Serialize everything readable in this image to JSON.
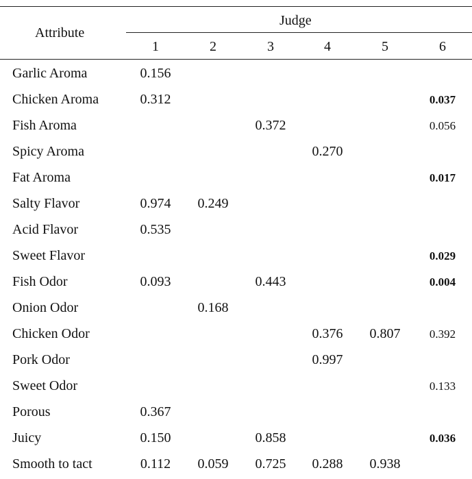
{
  "table": {
    "attribute_header": "Attribute",
    "group_header": "Judge",
    "judges": [
      "1",
      "2",
      "3",
      "4",
      "5",
      "6"
    ],
    "rows": [
      {
        "attribute": "Garlic Aroma",
        "values": [
          "0.156",
          "",
          "",
          "",
          "",
          ""
        ],
        "bold": [
          false,
          false,
          false,
          false,
          false,
          false
        ]
      },
      {
        "attribute": "Chicken Aroma",
        "values": [
          "0.312",
          "",
          "",
          "",
          "",
          "0.037"
        ],
        "bold": [
          false,
          false,
          false,
          false,
          false,
          true
        ]
      },
      {
        "attribute": "Fish Aroma",
        "values": [
          "",
          "",
          "0.372",
          "",
          "",
          "0.056"
        ],
        "bold": [
          false,
          false,
          false,
          false,
          false,
          false
        ]
      },
      {
        "attribute": "Spicy Aroma",
        "values": [
          "",
          "",
          "",
          "0.270",
          "",
          ""
        ],
        "bold": [
          false,
          false,
          false,
          false,
          false,
          false
        ]
      },
      {
        "attribute": "Fat Aroma",
        "values": [
          "",
          "",
          "",
          "",
          "",
          "0.017"
        ],
        "bold": [
          false,
          false,
          false,
          false,
          false,
          true
        ]
      },
      {
        "attribute": "Salty Flavor",
        "values": [
          "0.974",
          "0.249",
          "",
          "",
          "",
          ""
        ],
        "bold": [
          false,
          false,
          false,
          false,
          false,
          false
        ]
      },
      {
        "attribute": "Acid Flavor",
        "values": [
          "0.535",
          "",
          "",
          "",
          "",
          ""
        ],
        "bold": [
          false,
          false,
          false,
          false,
          false,
          false
        ]
      },
      {
        "attribute": "Sweet Flavor",
        "values": [
          "",
          "",
          "",
          "",
          "",
          "0.029"
        ],
        "bold": [
          false,
          false,
          false,
          false,
          false,
          true
        ]
      },
      {
        "attribute": "Fish Odor",
        "values": [
          "0.093",
          "",
          "0.443",
          "",
          "",
          "0.004"
        ],
        "bold": [
          false,
          false,
          false,
          false,
          false,
          true
        ]
      },
      {
        "attribute": "Onion Odor",
        "values": [
          "",
          "0.168",
          "",
          "",
          "",
          ""
        ],
        "bold": [
          false,
          false,
          false,
          false,
          false,
          false
        ]
      },
      {
        "attribute": "Chicken Odor",
        "values": [
          "",
          "",
          "",
          "0.376",
          "0.807",
          "0.392"
        ],
        "bold": [
          false,
          false,
          false,
          false,
          false,
          false
        ]
      },
      {
        "attribute": "Pork Odor",
        "values": [
          "",
          "",
          "",
          "0.997",
          "",
          ""
        ],
        "bold": [
          false,
          false,
          false,
          false,
          false,
          false
        ]
      },
      {
        "attribute": "Sweet Odor",
        "values": [
          "",
          "",
          "",
          "",
          "",
          "0.133"
        ],
        "bold": [
          false,
          false,
          false,
          false,
          false,
          false
        ]
      },
      {
        "attribute": "Porous",
        "values": [
          "0.367",
          "",
          "",
          "",
          "",
          ""
        ],
        "bold": [
          false,
          false,
          false,
          false,
          false,
          false
        ]
      },
      {
        "attribute": "Juicy",
        "values": [
          "0.150",
          "",
          "0.858",
          "",
          "",
          "0.036"
        ],
        "bold": [
          false,
          false,
          false,
          false,
          false,
          true
        ]
      },
      {
        "attribute": "Smooth to tact",
        "values": [
          "0.112",
          "0.059",
          "0.725",
          "0.288",
          "0.938",
          ""
        ],
        "bold": [
          false,
          false,
          false,
          false,
          false,
          false
        ]
      }
    ]
  }
}
